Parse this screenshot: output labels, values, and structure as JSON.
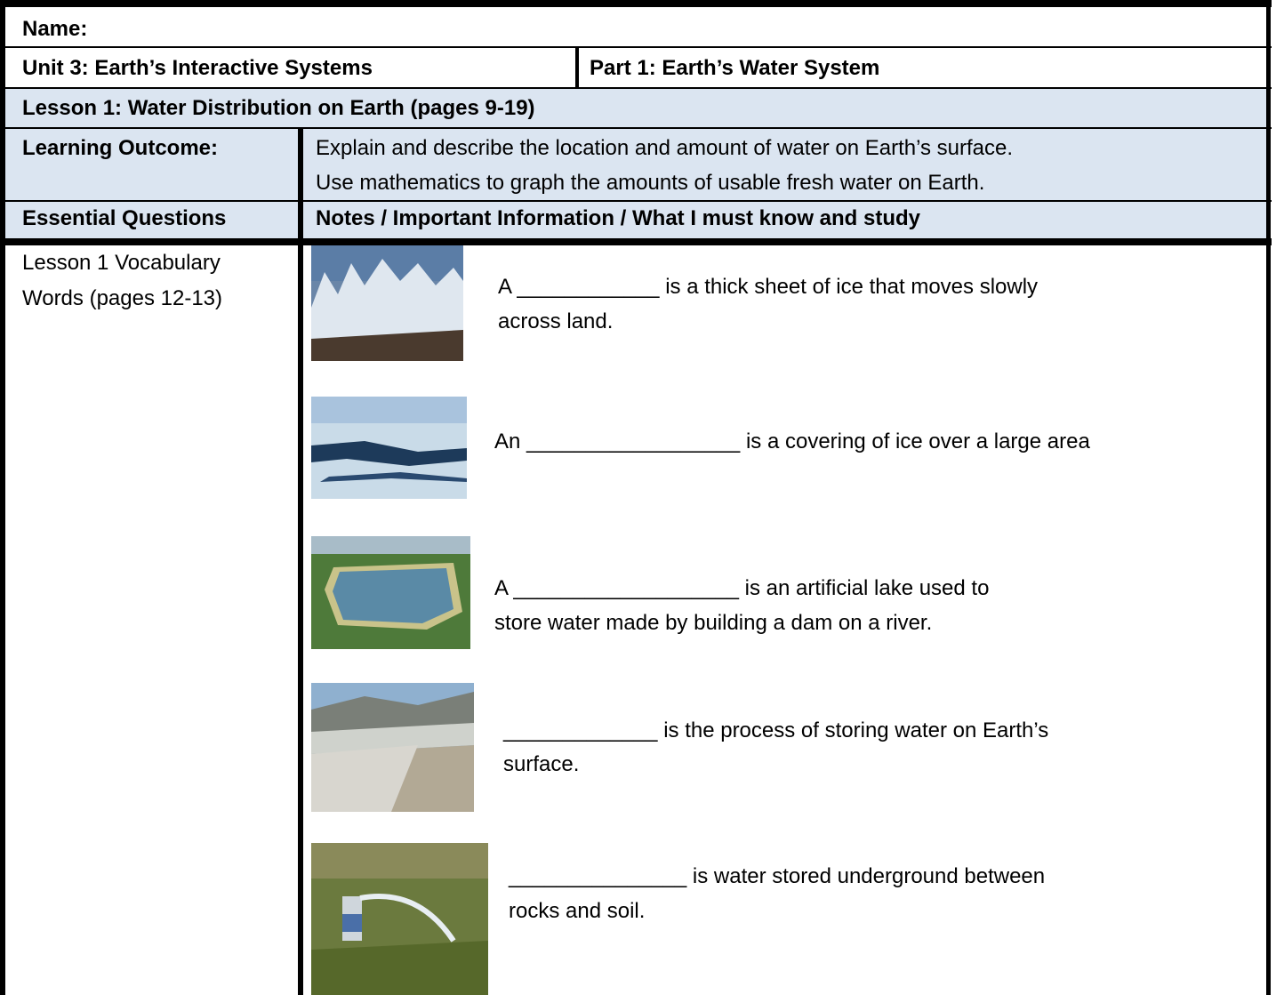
{
  "header": {
    "name": "Name:",
    "unit": "Unit 3: Earth’s Interactive Systems",
    "part": "Part 1: Earth’s Water System"
  },
  "lesson": "Lesson 1: Water Distribution on Earth (pages 9-19)",
  "outcome": {
    "label": "Learning Outcome:",
    "lines": [
      "Explain and describe the location and amount of water on Earth’s surface.",
      "Use mathematics to graph the amounts of usable fresh water on Earth."
    ]
  },
  "columns": {
    "left": "Essential Questions",
    "right": "Notes / Important Information / What I must know and study"
  },
  "body": {
    "left_lines": [
      "Lesson 1 Vocabulary",
      "Words (pages 12-13)"
    ],
    "vocab": [
      {
        "lines": [
          "A ____________ is a thick sheet of ice that moves slowly",
          "across land."
        ]
      },
      {
        "lines": [
          "An __________________ is a covering of ice over a large area"
        ]
      },
      {
        "lines": [
          "A ___________________ is an artificial lake used to",
          "store water made by building a dam on a river."
        ]
      },
      {
        "lines": [
          "_____________ is the process of storing water on Earth’s",
          "surface."
        ]
      },
      {
        "lines": [
          "_______________ is water stored underground between",
          "rocks and soil."
        ]
      }
    ]
  }
}
